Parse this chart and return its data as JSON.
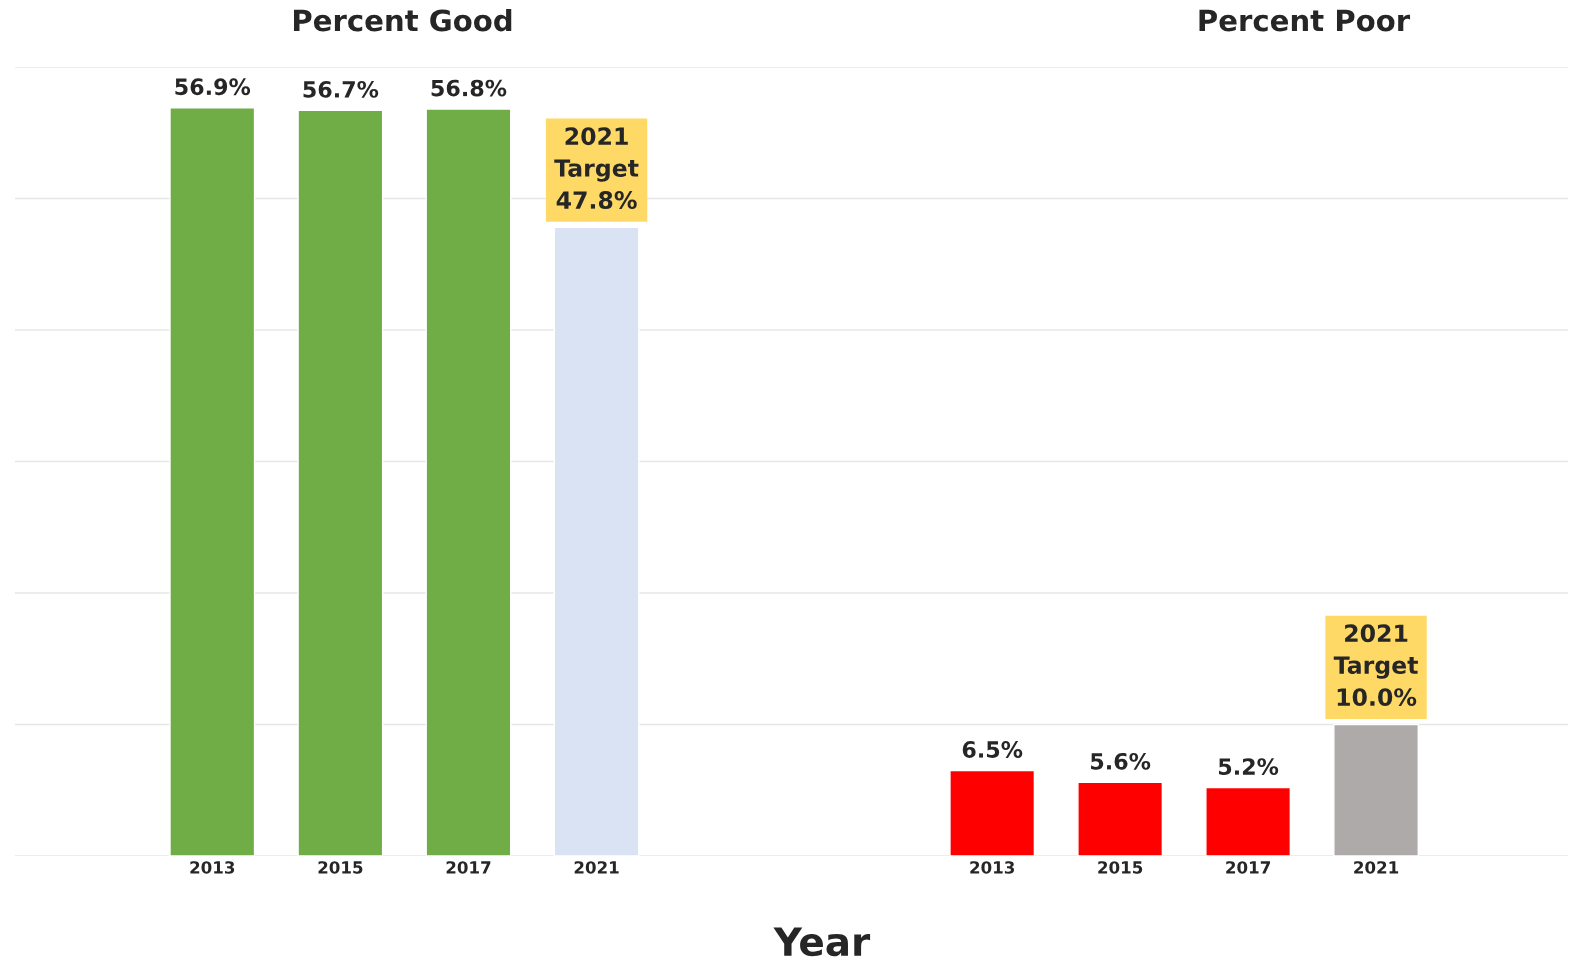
{
  "chart_data": [
    {
      "type": "bar",
      "title": "Percent Good",
      "xlabel": "Year",
      "categories": [
        "2013",
        "2015",
        "2017",
        "2021"
      ],
      "values": [
        56.9,
        56.7,
        56.8,
        47.8
      ],
      "colors": [
        "#70ad47",
        "#70ad47",
        "#70ad47",
        "#dae3f3"
      ],
      "value_labels": [
        "56.9%",
        "56.7%",
        "56.8%",
        "2021\nTarget\n47.8%"
      ],
      "ylim": [
        0,
        60
      ],
      "yticks": [
        {
          "value": 0,
          "label": null
        },
        {
          "value": 10,
          "label": null
        },
        {
          "value": 20,
          "label": null
        },
        {
          "value": 30,
          "label": null
        },
        {
          "value": 40,
          "label": null
        },
        {
          "value": 50,
          "label": null
        },
        {
          "value": 60,
          "label": null
        }
      ],
      "grid": "y",
      "tick_labels": "x"
    },
    {
      "type": "bar",
      "title": "Percent Poor",
      "categories": [
        "2013",
        "2015",
        "2017",
        "2021"
      ],
      "values": [
        6.5,
        5.6,
        5.2,
        10.0
      ],
      "colors": [
        "#ff0000",
        "#ff0000",
        "#ff0000",
        "#aeaaaa"
      ],
      "value_labels": [
        "6.5%",
        "5.6%",
        "5.2%",
        "2021\nTarget\n10.0%"
      ],
      "ylim": [
        0,
        60
      ],
      "yticks": [
        {
          "value": 0,
          "label": null
        },
        {
          "value": 10,
          "label": null
        },
        {
          "value": 20,
          "label": null
        },
        {
          "value": 30,
          "label": null
        },
        {
          "value": 40,
          "label": null
        },
        {
          "value": 50,
          "label": null
        },
        {
          "value": 60,
          "label": null
        }
      ],
      "grid": "y",
      "tick_labels": "x"
    }
  ]
}
